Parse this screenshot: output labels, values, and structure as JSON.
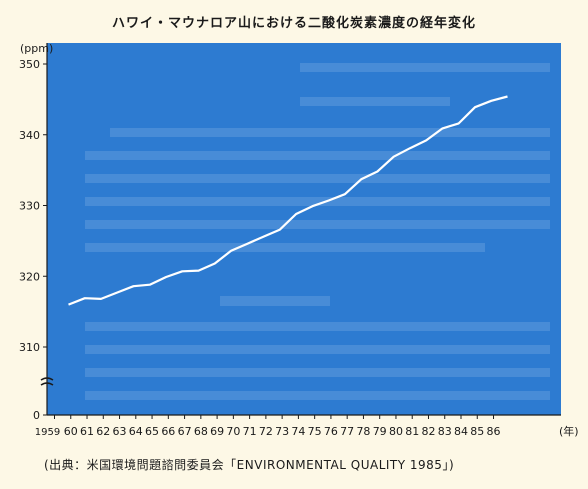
{
  "chart_data": {
    "type": "line",
    "title": "ハワイ・マウナロア山における二酸化炭素濃度の経年変化",
    "unit_label": "(ppm)",
    "x_unit_label": "(年)",
    "xlabel": "",
    "ylabel": "",
    "source_note": "(出典：米国環境問題諮問委員会「ENVIRONMENTAL QUALITY 1985」)",
    "x": [
      "1959",
      "60",
      "61",
      "62",
      "63",
      "64",
      "65",
      "66",
      "67",
      "68",
      "69",
      "70",
      "71",
      "72",
      "73",
      "74",
      "75",
      "76",
      "77",
      "78",
      "79",
      "80",
      "81",
      "82",
      "83",
      "84",
      "85",
      "86"
    ],
    "values": [
      316.0,
      316.9,
      316.8,
      317.7,
      318.6,
      318.8,
      319.9,
      320.7,
      320.8,
      321.8,
      323.6,
      324.6,
      325.6,
      326.6,
      328.8,
      329.9,
      330.7,
      331.6,
      333.7,
      334.8,
      336.9,
      338.1,
      339.2,
      340.9,
      341.6,
      343.9,
      344.8,
      345.4
    ],
    "y_ticks": [
      0,
      310,
      320,
      330,
      340,
      350
    ],
    "ylim": [
      310,
      350
    ],
    "axis_break": true,
    "grid": false,
    "colors": {
      "background": "#2d7bd1",
      "line": "#ffffff",
      "text": "#1a1a1a"
    }
  }
}
